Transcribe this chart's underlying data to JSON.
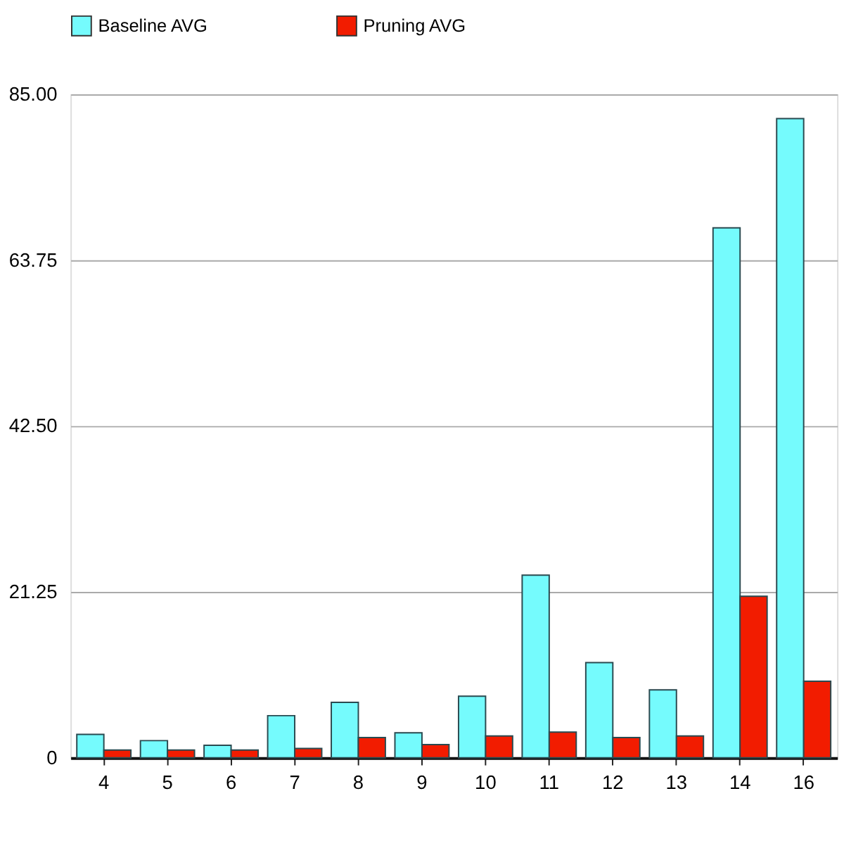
{
  "chart_data": {
    "type": "bar",
    "categories": [
      "4",
      "5",
      "6",
      "7",
      "8",
      "9",
      "10",
      "11",
      "12",
      "13",
      "14",
      "16"
    ],
    "series": [
      {
        "name": "Baseline AVG",
        "color": "#75fbfd",
        "values": [
          3.0,
          2.2,
          1.6,
          5.4,
          7.1,
          3.2,
          7.9,
          23.4,
          12.2,
          8.7,
          67.9,
          81.9
        ]
      },
      {
        "name": "Pruning AVG",
        "color": "#f21c00",
        "values": [
          1.0,
          1.0,
          1.0,
          1.2,
          2.6,
          1.7,
          2.8,
          3.3,
          2.6,
          2.8,
          20.7,
          9.8
        ]
      }
    ],
    "ylim": [
      0,
      85
    ],
    "yticks": [
      0,
      {
        "value": 21.25,
        "label": "21.25"
      },
      {
        "value": 42.5,
        "label": "42.50"
      },
      {
        "value": 63.75,
        "label": "63.75"
      },
      {
        "value": 85,
        "label": "85.00"
      }
    ],
    "grid": "y",
    "legend": "top"
  }
}
